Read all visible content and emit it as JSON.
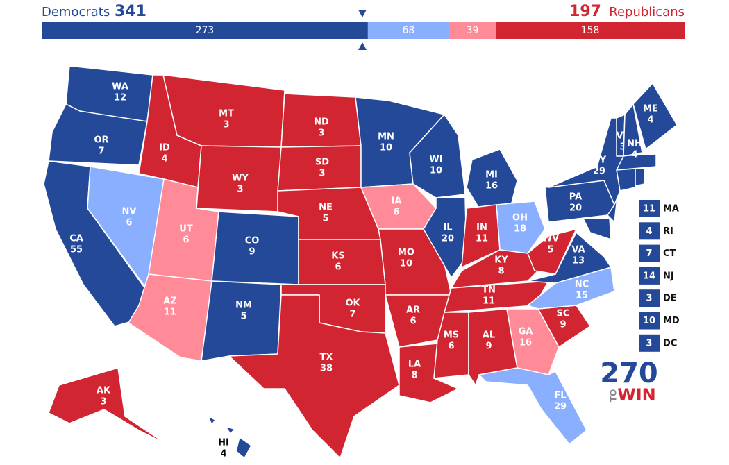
{
  "header": {
    "dem_label": "Democrats",
    "dem_total": 341,
    "rep_total": 197,
    "rep_label": "Republicans",
    "segments": [
      {
        "value": 273,
        "rating": "safe_dem"
      },
      {
        "value": 68,
        "rating": "lean_dem"
      },
      {
        "value": 39,
        "rating": "lean_rep"
      },
      {
        "value": 158,
        "rating": "safe_rep"
      }
    ]
  },
  "colors": {
    "safe_dem": "#244999",
    "lean_dem": "#8aafff",
    "lean_rep": "#ff8a98",
    "safe_rep": "#d22532"
  },
  "states": [
    {
      "abbr": "WA",
      "ev": 12,
      "rating": "safe_dem"
    },
    {
      "abbr": "OR",
      "ev": 7,
      "rating": "safe_dem"
    },
    {
      "abbr": "CA",
      "ev": 55,
      "rating": "safe_dem"
    },
    {
      "abbr": "NV",
      "ev": 6,
      "rating": "lean_dem"
    },
    {
      "abbr": "ID",
      "ev": 4,
      "rating": "safe_rep"
    },
    {
      "abbr": "MT",
      "ev": 3,
      "rating": "safe_rep"
    },
    {
      "abbr": "WY",
      "ev": 3,
      "rating": "safe_rep"
    },
    {
      "abbr": "UT",
      "ev": 6,
      "rating": "lean_rep"
    },
    {
      "abbr": "AZ",
      "ev": 11,
      "rating": "lean_rep"
    },
    {
      "abbr": "CO",
      "ev": 9,
      "rating": "safe_dem"
    },
    {
      "abbr": "NM",
      "ev": 5,
      "rating": "safe_dem"
    },
    {
      "abbr": "ND",
      "ev": 3,
      "rating": "safe_rep"
    },
    {
      "abbr": "SD",
      "ev": 3,
      "rating": "safe_rep"
    },
    {
      "abbr": "NE",
      "ev": 5,
      "rating": "safe_rep"
    },
    {
      "abbr": "KS",
      "ev": 6,
      "rating": "safe_rep"
    },
    {
      "abbr": "OK",
      "ev": 7,
      "rating": "safe_rep"
    },
    {
      "abbr": "TX",
      "ev": 38,
      "rating": "safe_rep"
    },
    {
      "abbr": "MN",
      "ev": 10,
      "rating": "safe_dem"
    },
    {
      "abbr": "IA",
      "ev": 6,
      "rating": "lean_rep"
    },
    {
      "abbr": "MO",
      "ev": 10,
      "rating": "safe_rep"
    },
    {
      "abbr": "AR",
      "ev": 6,
      "rating": "safe_rep"
    },
    {
      "abbr": "LA",
      "ev": 8,
      "rating": "safe_rep"
    },
    {
      "abbr": "WI",
      "ev": 10,
      "rating": "safe_dem"
    },
    {
      "abbr": "IL",
      "ev": 20,
      "rating": "safe_dem"
    },
    {
      "abbr": "MI",
      "ev": 16,
      "rating": "safe_dem"
    },
    {
      "abbr": "IN",
      "ev": 11,
      "rating": "safe_rep"
    },
    {
      "abbr": "OH",
      "ev": 18,
      "rating": "lean_dem"
    },
    {
      "abbr": "KY",
      "ev": 8,
      "rating": "safe_rep"
    },
    {
      "abbr": "TN",
      "ev": 11,
      "rating": "safe_rep"
    },
    {
      "abbr": "MS",
      "ev": 6,
      "rating": "safe_rep"
    },
    {
      "abbr": "AL",
      "ev": 9,
      "rating": "safe_rep"
    },
    {
      "abbr": "GA",
      "ev": 16,
      "rating": "lean_rep"
    },
    {
      "abbr": "FL",
      "ev": 29,
      "rating": "lean_dem"
    },
    {
      "abbr": "SC",
      "ev": 9,
      "rating": "safe_rep"
    },
    {
      "abbr": "NC",
      "ev": 15,
      "rating": "lean_dem"
    },
    {
      "abbr": "VA",
      "ev": 13,
      "rating": "safe_dem"
    },
    {
      "abbr": "WV",
      "ev": 5,
      "rating": "safe_rep"
    },
    {
      "abbr": "PA",
      "ev": 20,
      "rating": "safe_dem"
    },
    {
      "abbr": "NY",
      "ev": 29,
      "rating": "safe_dem"
    },
    {
      "abbr": "VT",
      "ev": 3,
      "rating": "safe_dem"
    },
    {
      "abbr": "NH",
      "ev": 4,
      "rating": "safe_dem"
    },
    {
      "abbr": "ME",
      "ev": 4,
      "rating": "safe_dem"
    },
    {
      "abbr": "AK",
      "ev": 3,
      "rating": "safe_rep"
    },
    {
      "abbr": "HI",
      "ev": 4,
      "rating": "safe_dem"
    }
  ],
  "small_states": [
    {
      "abbr": "MA",
      "ev": 11,
      "rating": "safe_dem"
    },
    {
      "abbr": "RI",
      "ev": 4,
      "rating": "safe_dem"
    },
    {
      "abbr": "CT",
      "ev": 7,
      "rating": "safe_dem"
    },
    {
      "abbr": "NJ",
      "ev": 14,
      "rating": "safe_dem"
    },
    {
      "abbr": "DE",
      "ev": 3,
      "rating": "safe_dem"
    },
    {
      "abbr": "MD",
      "ev": 10,
      "rating": "safe_dem"
    },
    {
      "abbr": "DC",
      "ev": 3,
      "rating": "safe_dem"
    }
  ],
  "logo": {
    "number": "270",
    "to": "TO",
    "win": "WIN"
  }
}
